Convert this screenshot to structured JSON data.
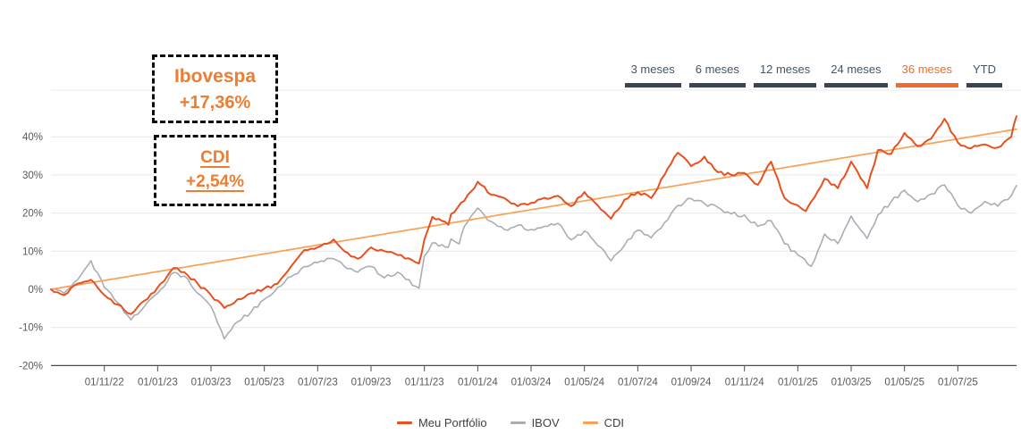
{
  "annotations": {
    "ibovespa": {
      "title": "Ibovespa",
      "value": "+17,36%"
    },
    "cdi": {
      "title": "CDI",
      "value": "+2,54%"
    }
  },
  "tabs": [
    {
      "label": "3 meses",
      "selected": false
    },
    {
      "label": "6 meses",
      "selected": false
    },
    {
      "label": "12 meses",
      "selected": false
    },
    {
      "label": "24 meses",
      "selected": false
    },
    {
      "label": "36 meses",
      "selected": true
    },
    {
      "label": "YTD",
      "selected": false
    }
  ],
  "legend": [
    {
      "label": "Meu Portfólio",
      "color": "#E8501F"
    },
    {
      "label": "IBOV",
      "color": "#A9ADB4"
    },
    {
      "label": "CDI",
      "color": "#F7A155"
    }
  ],
  "colors": {
    "accent_orange": "#ED6C2F",
    "annotation_orange": "#ED7D31",
    "tab_dark": "#3A4458",
    "tab_text": "#44546A",
    "axis_text": "#595959",
    "gridline": "#E8E8E8",
    "axis_line": "#4D4D4D",
    "background": "#FFFFFF"
  },
  "chart_data": {
    "type": "line",
    "title": "",
    "xlabel": "",
    "ylabel": "",
    "grid": true,
    "legend_position": "bottom",
    "t_range": [
      0,
      36.2
    ],
    "t_unit": "months since 09/2022",
    "ylim": [
      -20,
      46
    ],
    "y_axis": {
      "tick_values": [
        -20,
        -10,
        0,
        10,
        20,
        30,
        40
      ],
      "tick_labels": [
        "-20%",
        "-10%",
        "0%",
        "10%",
        "20%",
        "30%",
        "40%"
      ]
    },
    "x_axis": {
      "tick_t": [
        2,
        4,
        6,
        8,
        10,
        12,
        14,
        16,
        18,
        20,
        22,
        24,
        26,
        28,
        30,
        32,
        34
      ],
      "tick_labels": [
        "01/11/22",
        "01/01/23",
        "01/03/23",
        "01/05/23",
        "01/07/23",
        "01/09/23",
        "01/11/23",
        "01/01/24",
        "01/03/24",
        "01/05/24",
        "01/07/24",
        "01/09/24",
        "01/11/24",
        "01/01/25",
        "01/03/25",
        "01/05/25",
        "01/07/25"
      ]
    },
    "series": [
      {
        "name": "Meu Portfólio",
        "color": "#E8501F",
        "unit": "%",
        "jitter": 0.45,
        "points": [
          [
            0,
            0
          ],
          [
            0.5,
            -1.5
          ],
          [
            1,
            1.5
          ],
          [
            1.5,
            2.5
          ],
          [
            2,
            -1.5
          ],
          [
            2.5,
            -4
          ],
          [
            3,
            -6.5
          ],
          [
            3.5,
            -3
          ],
          [
            4,
            0.5
          ],
          [
            4.6,
            5.6
          ],
          [
            5,
            4.5
          ],
          [
            5.5,
            1.5
          ],
          [
            6,
            -1.5
          ],
          [
            6.5,
            -4.9
          ],
          [
            7,
            -2.6
          ],
          [
            7.5,
            -1
          ],
          [
            8,
            0.2
          ],
          [
            8.5,
            1.5
          ],
          [
            9,
            6
          ],
          [
            9.5,
            10.3
          ],
          [
            10,
            11
          ],
          [
            10.6,
            13.1
          ],
          [
            11,
            10
          ],
          [
            11.5,
            8
          ],
          [
            12,
            11
          ],
          [
            12.5,
            10
          ],
          [
            13,
            9
          ],
          [
            13.8,
            6.8
          ],
          [
            14,
            13.1
          ],
          [
            14.3,
            19
          ],
          [
            14.9,
            16.9
          ],
          [
            15,
            19.7
          ],
          [
            15.5,
            23.2
          ],
          [
            16,
            28.2
          ],
          [
            16.5,
            24.8
          ],
          [
            17,
            23.9
          ],
          [
            17.5,
            21.8
          ],
          [
            18,
            22.7
          ],
          [
            18.5,
            24
          ],
          [
            19,
            24.5
          ],
          [
            19.5,
            21.8
          ],
          [
            20,
            25.5
          ],
          [
            20.5,
            22
          ],
          [
            21,
            18.5
          ],
          [
            21.5,
            23.5
          ],
          [
            22,
            25.5
          ],
          [
            22.5,
            23.9
          ],
          [
            23,
            30
          ],
          [
            23.5,
            35.8
          ],
          [
            24,
            32.3
          ],
          [
            24.5,
            34.8
          ],
          [
            25,
            30.7
          ],
          [
            25.5,
            30
          ],
          [
            26,
            30.5
          ],
          [
            26.5,
            27.4
          ],
          [
            27,
            33.5
          ],
          [
            27.5,
            24
          ],
          [
            28,
            22
          ],
          [
            28.3,
            20.5
          ],
          [
            28.5,
            23
          ],
          [
            29,
            29
          ],
          [
            29.5,
            26.5
          ],
          [
            30,
            33.5
          ],
          [
            30.6,
            26.5
          ],
          [
            31,
            36.5
          ],
          [
            31.5,
            35.5
          ],
          [
            32,
            41
          ],
          [
            32.5,
            37.5
          ],
          [
            33,
            39.5
          ],
          [
            33.5,
            44.7
          ],
          [
            34,
            38.5
          ],
          [
            34.5,
            37
          ],
          [
            35,
            38
          ],
          [
            35.5,
            37.2
          ],
          [
            36,
            40
          ],
          [
            36.2,
            45.4
          ]
        ]
      },
      {
        "name": "IBOV",
        "color": "#A9ADB4",
        "unit": "%",
        "jitter": 0.55,
        "points": [
          [
            0,
            0
          ],
          [
            0.5,
            -1
          ],
          [
            1,
            2.5
          ],
          [
            1.5,
            7.5
          ],
          [
            2,
            0.5
          ],
          [
            2.5,
            -3.5
          ],
          [
            3,
            -8
          ],
          [
            3.5,
            -4.5
          ],
          [
            4,
            -1
          ],
          [
            4.6,
            4.4
          ],
          [
            5,
            3.5
          ],
          [
            5.5,
            -1
          ],
          [
            6,
            -4.5
          ],
          [
            6.5,
            -13
          ],
          [
            7,
            -8.5
          ],
          [
            7.5,
            -6
          ],
          [
            8,
            -2.6
          ],
          [
            8.5,
            0.5
          ],
          [
            9,
            3.3
          ],
          [
            9.5,
            6
          ],
          [
            10,
            7
          ],
          [
            10.6,
            8
          ],
          [
            11,
            6
          ],
          [
            11.5,
            4.5
          ],
          [
            12,
            6
          ],
          [
            12.5,
            3
          ],
          [
            13,
            4.5
          ],
          [
            13.3,
            2.6
          ],
          [
            13.8,
            0.3
          ],
          [
            14,
            8.7
          ],
          [
            14.3,
            12.2
          ],
          [
            14.9,
            11
          ],
          [
            15,
            13.2
          ],
          [
            15.3,
            11.9
          ],
          [
            15.5,
            16.5
          ],
          [
            16,
            21.3
          ],
          [
            16.5,
            17.8
          ],
          [
            17,
            15.7
          ],
          [
            17.5,
            16.8
          ],
          [
            18,
            15.7
          ],
          [
            18.5,
            16.5
          ],
          [
            19,
            17.3
          ],
          [
            19.5,
            13
          ],
          [
            20,
            15.3
          ],
          [
            20.5,
            11.5
          ],
          [
            21,
            7.5
          ],
          [
            21.5,
            11.5
          ],
          [
            22,
            15.5
          ],
          [
            22.5,
            13.5
          ],
          [
            23,
            17.5
          ],
          [
            23.5,
            22
          ],
          [
            24,
            23.8
          ],
          [
            24.5,
            22.5
          ],
          [
            25,
            21.5
          ],
          [
            25.5,
            19.8
          ],
          [
            26,
            19.5
          ],
          [
            26.5,
            16.5
          ],
          [
            27,
            18
          ],
          [
            27.5,
            12
          ],
          [
            28,
            9
          ],
          [
            28.5,
            6
          ],
          [
            29,
            14.5
          ],
          [
            29.5,
            12
          ],
          [
            30,
            19.2
          ],
          [
            30.6,
            13.3
          ],
          [
            31,
            19.5
          ],
          [
            31.5,
            23
          ],
          [
            32,
            26
          ],
          [
            32.5,
            23
          ],
          [
            33,
            25
          ],
          [
            33.5,
            27.4
          ],
          [
            34,
            22
          ],
          [
            34.5,
            20
          ],
          [
            35,
            23
          ],
          [
            35.5,
            21.8
          ],
          [
            36,
            24.5
          ],
          [
            36.2,
            27.2
          ]
        ]
      },
      {
        "name": "CDI",
        "color": "#F7A155",
        "unit": "%",
        "jitter": 0,
        "points": [
          [
            0,
            0
          ],
          [
            36.2,
            42
          ]
        ]
      }
    ]
  }
}
